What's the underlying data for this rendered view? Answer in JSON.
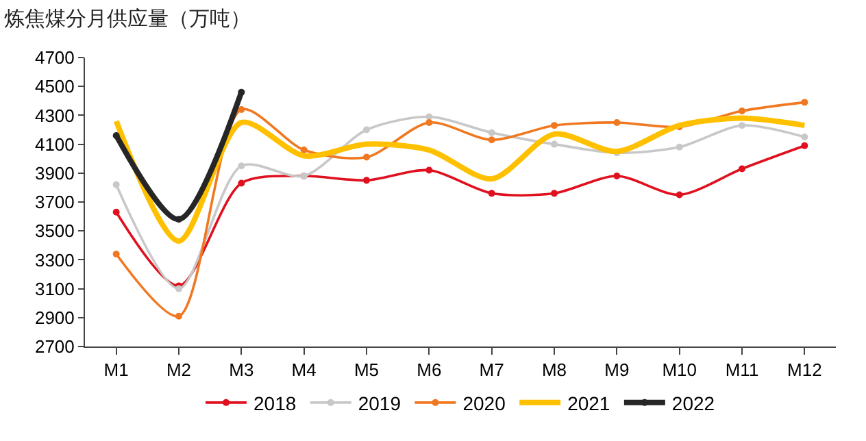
{
  "chart_data": {
    "type": "line",
    "title": "炼焦煤分月供应量（万吨）",
    "categories": [
      "M1",
      "M2",
      "M3",
      "M4",
      "M5",
      "M6",
      "M7",
      "M8",
      "M9",
      "M10",
      "M11",
      "M12"
    ],
    "series": [
      {
        "name": "2018",
        "color": "#e0101e",
        "values": [
          3630,
          3120,
          3830,
          3880,
          3850,
          3920,
          3760,
          3760,
          3880,
          3750,
          3930,
          4090
        ]
      },
      {
        "name": "2019",
        "color": "#c8c8c8",
        "values": [
          3820,
          3100,
          3950,
          3880,
          4200,
          4290,
          4180,
          4100,
          4040,
          4080,
          4230,
          4150
        ]
      },
      {
        "name": "2020",
        "color": "#f07820",
        "values": [
          3340,
          2910,
          4340,
          4060,
          4010,
          4250,
          4130,
          4230,
          4250,
          4220,
          4330,
          4390
        ]
      },
      {
        "name": "2021",
        "color": "#ffc000",
        "marker": "none",
        "values": [
          4260,
          3430,
          4250,
          4020,
          4100,
          4060,
          3860,
          4170,
          4050,
          4230,
          4280,
          4230
        ]
      },
      {
        "name": "2022",
        "color": "#262626",
        "values": [
          4160,
          3580,
          4460,
          null,
          null,
          null,
          null,
          null,
          null,
          null,
          null,
          null
        ]
      }
    ],
    "ylim": [
      2700,
      4700
    ],
    "yticks": [
      2700,
      2900,
      3100,
      3300,
      3500,
      3700,
      3900,
      4100,
      4300,
      4500,
      4700
    ],
    "grid": false,
    "legend": "bottom",
    "marker": "circle",
    "line_style": "solid"
  }
}
